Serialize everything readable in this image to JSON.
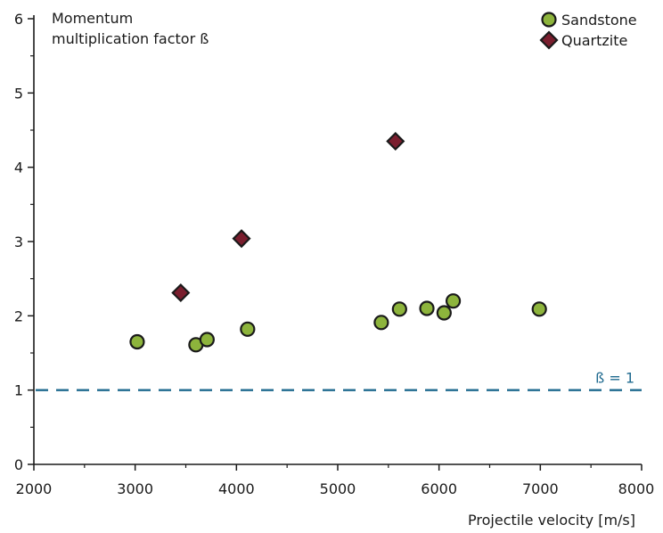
{
  "chart_data": {
    "type": "scatter",
    "title": "",
    "ylabel": "Momentum multiplication factor  ß",
    "ylabel_lines": [
      "Momentum",
      "multiplication factor  ß"
    ],
    "xlabel": "Projectile velocity [m/s]",
    "xlim": [
      2000,
      8000
    ],
    "ylim": [
      0,
      6
    ],
    "x_ticks": [
      2000,
      3000,
      4000,
      5000,
      6000,
      7000,
      8000
    ],
    "x_ticks_minor": [
      2500,
      3500,
      4500,
      5500,
      6500,
      7500
    ],
    "y_ticks": [
      0,
      1,
      2,
      3,
      4,
      5,
      6
    ],
    "y_ticks_minor": [
      0.5,
      1.5,
      2.5,
      3.5,
      4.5,
      5.5
    ],
    "grid": false,
    "legend_position": "top-right",
    "series": [
      {
        "name": "Sandstone",
        "marker": "circle",
        "color": "#8db43c",
        "x": [
          3020,
          3600,
          3710,
          4110,
          5430,
          5610,
          5880,
          6050,
          6140,
          6990
        ],
        "y": [
          1.65,
          1.61,
          1.68,
          1.82,
          1.91,
          2.09,
          2.1,
          2.04,
          2.2,
          2.09
        ]
      },
      {
        "name": "Quartzite",
        "marker": "diamond",
        "color": "#7a1e2e",
        "x": [
          3450,
          4050,
          5570
        ],
        "y": [
          2.31,
          3.04,
          4.35
        ]
      }
    ],
    "reference_line": {
      "y": 1,
      "label": "ß = 1",
      "color": "#1f6a8f",
      "style": "dashed"
    }
  }
}
